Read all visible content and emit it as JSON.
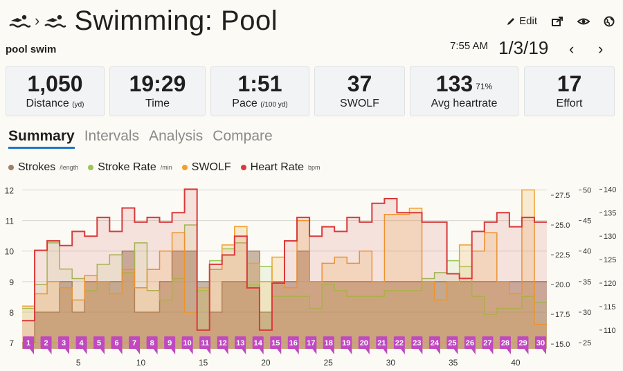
{
  "header": {
    "breadcrumb_sep": "›",
    "title": "Swimming: Pool",
    "edit_label": "Edit",
    "subtitle": "pool swim",
    "time": "7:55 AM",
    "date": "1/3/19",
    "prev": "‹",
    "next": "›",
    "icons": [
      "swimmer-icon",
      "swimmer-icon",
      "pencil-icon",
      "share-icon",
      "eye-toggle-icon",
      "globe-icon"
    ]
  },
  "stats": [
    {
      "value": "1,050",
      "label": "Distance",
      "unit": "(yd)"
    },
    {
      "value": "19:29",
      "label": "Time",
      "unit": ""
    },
    {
      "value": "1:51",
      "label": "Pace",
      "unit": "(/100 yd)"
    },
    {
      "value": "37",
      "label": "SWOLF",
      "unit": ""
    },
    {
      "value": "133",
      "sup": "71%",
      "label": "Avg heartrate",
      "unit": ""
    },
    {
      "value": "17",
      "label": "Effort",
      "unit": ""
    }
  ],
  "tabs": [
    {
      "label": "Summary",
      "active": true
    },
    {
      "label": "Intervals",
      "active": false
    },
    {
      "label": "Analysis",
      "active": false
    },
    {
      "label": "Compare",
      "active": false
    }
  ],
  "legend": [
    {
      "label": "Strokes",
      "unit": "/length",
      "color": "#a08066"
    },
    {
      "label": "Stroke Rate",
      "unit": "/min",
      "color": "#9cc45a"
    },
    {
      "label": "SWOLF",
      "unit": "",
      "color": "#f0a02e"
    },
    {
      "label": "Heart Rate",
      "unit": "bpm",
      "color": "#d93a3a"
    }
  ],
  "chart_data": {
    "type": "area",
    "x": {
      "ticks": [
        5,
        10,
        15,
        20,
        25,
        30,
        35,
        40
      ],
      "range": [
        0.5,
        42.5
      ]
    },
    "axes": {
      "strokes": {
        "ticks": [
          7,
          8,
          9,
          10,
          11,
          12
        ],
        "range": [
          6.8,
          12.1
        ]
      },
      "stroke_rate": {
        "ticks": [
          15.0,
          17.5,
          20.0,
          22.5,
          25.0,
          27.5
        ],
        "range": [
          14.6,
          28.2
        ]
      },
      "swolf": {
        "ticks": [
          25,
          30,
          35,
          40,
          45,
          50
        ],
        "range": [
          24,
          50.5
        ]
      },
      "heart_rate": {
        "ticks": [
          110,
          115,
          120,
          125,
          130,
          135,
          140
        ],
        "range": [
          106,
          140.5
        ]
      }
    },
    "breaks_after_length": [
      14
    ],
    "series": [
      {
        "name": "Strokes",
        "axis": "strokes",
        "color": "#a08066",
        "values": [
          7,
          8,
          8,
          9,
          8,
          9,
          9,
          9,
          10,
          8,
          8,
          9,
          10,
          10,
          9,
          8,
          9,
          9,
          10,
          8,
          9,
          9,
          10,
          9,
          9,
          9,
          9,
          9,
          9,
          9,
          9,
          9,
          9,
          9,
          9,
          9,
          9,
          9,
          9,
          9,
          9,
          9
        ]
      },
      {
        "name": "Stroke Rate",
        "axis": "stroke_rate",
        "color": "#9cc45a",
        "values": [
          18.0,
          20.0,
          23.5,
          21.3,
          20.5,
          19.5,
          21.7,
          22.5,
          21.0,
          23.5,
          19.5,
          18.7,
          20.5,
          25.0,
          19.5,
          22.0,
          23.0,
          23.5,
          20.0,
          21.5,
          19.0,
          19.0,
          19.0,
          18.0,
          20.0,
          19.5,
          19.0,
          19.0,
          19.0,
          19.5,
          19.5,
          19.5,
          20.5,
          21.0,
          22.0,
          21.5,
          19.0,
          17.5,
          18.0,
          18.0,
          19.0,
          18.5
        ]
      },
      {
        "name": "SWOLF",
        "axis": "swolf",
        "color": "#f0a02e",
        "values": [
          31,
          33,
          35,
          34,
          32,
          36,
          35,
          33,
          37,
          34,
          37,
          40,
          43,
          30,
          34,
          37,
          41,
          44,
          38,
          35,
          39,
          34,
          45,
          35,
          38,
          39,
          38,
          40,
          35,
          46,
          46,
          47,
          35,
          32,
          35,
          41,
          40,
          43,
          35,
          33,
          50,
          28
        ]
      },
      {
        "name": "Heart Rate",
        "axis": "heart_rate",
        "color": "#d93a3a",
        "values": [
          112,
          127,
          129,
          128,
          131,
          130,
          134,
          131,
          136,
          133,
          134,
          133,
          135,
          140,
          110,
          124,
          126,
          130,
          119,
          110,
          120,
          129,
          134,
          130,
          132,
          131,
          134,
          133,
          137,
          138,
          135,
          135,
          133,
          133,
          122,
          121,
          131,
          133,
          135,
          132,
          134,
          133
        ]
      }
    ],
    "markers": [
      "1",
      "2",
      "3",
      "4",
      "5",
      "6",
      "7",
      "8",
      "9",
      "10",
      "11",
      "12",
      "13",
      "14",
      "15",
      "16",
      "17",
      "18",
      "19",
      "20",
      "21",
      "22",
      "23",
      "24",
      "25",
      "26",
      "27",
      "28",
      "29",
      "30"
    ]
  }
}
